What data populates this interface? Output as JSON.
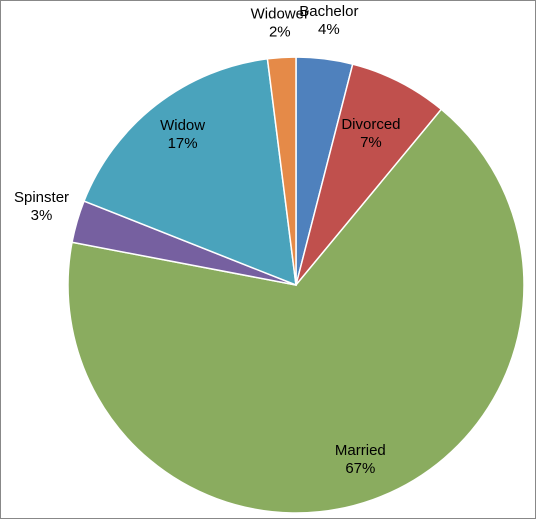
{
  "chart_data": {
    "type": "pie",
    "categories": [
      "Bachelor",
      "Divorced",
      "Married",
      "Spinster",
      "Widow",
      "Widower"
    ],
    "values": [
      4,
      7,
      67,
      3,
      17,
      2
    ],
    "value_labels": [
      "4%",
      "7%",
      "67%",
      "3%",
      "17%",
      "2%"
    ],
    "colors": [
      "#4f81bd",
      "#c0504d",
      "#8aac5f",
      "#7660a0",
      "#4aa3bc",
      "#e58a48"
    ]
  }
}
